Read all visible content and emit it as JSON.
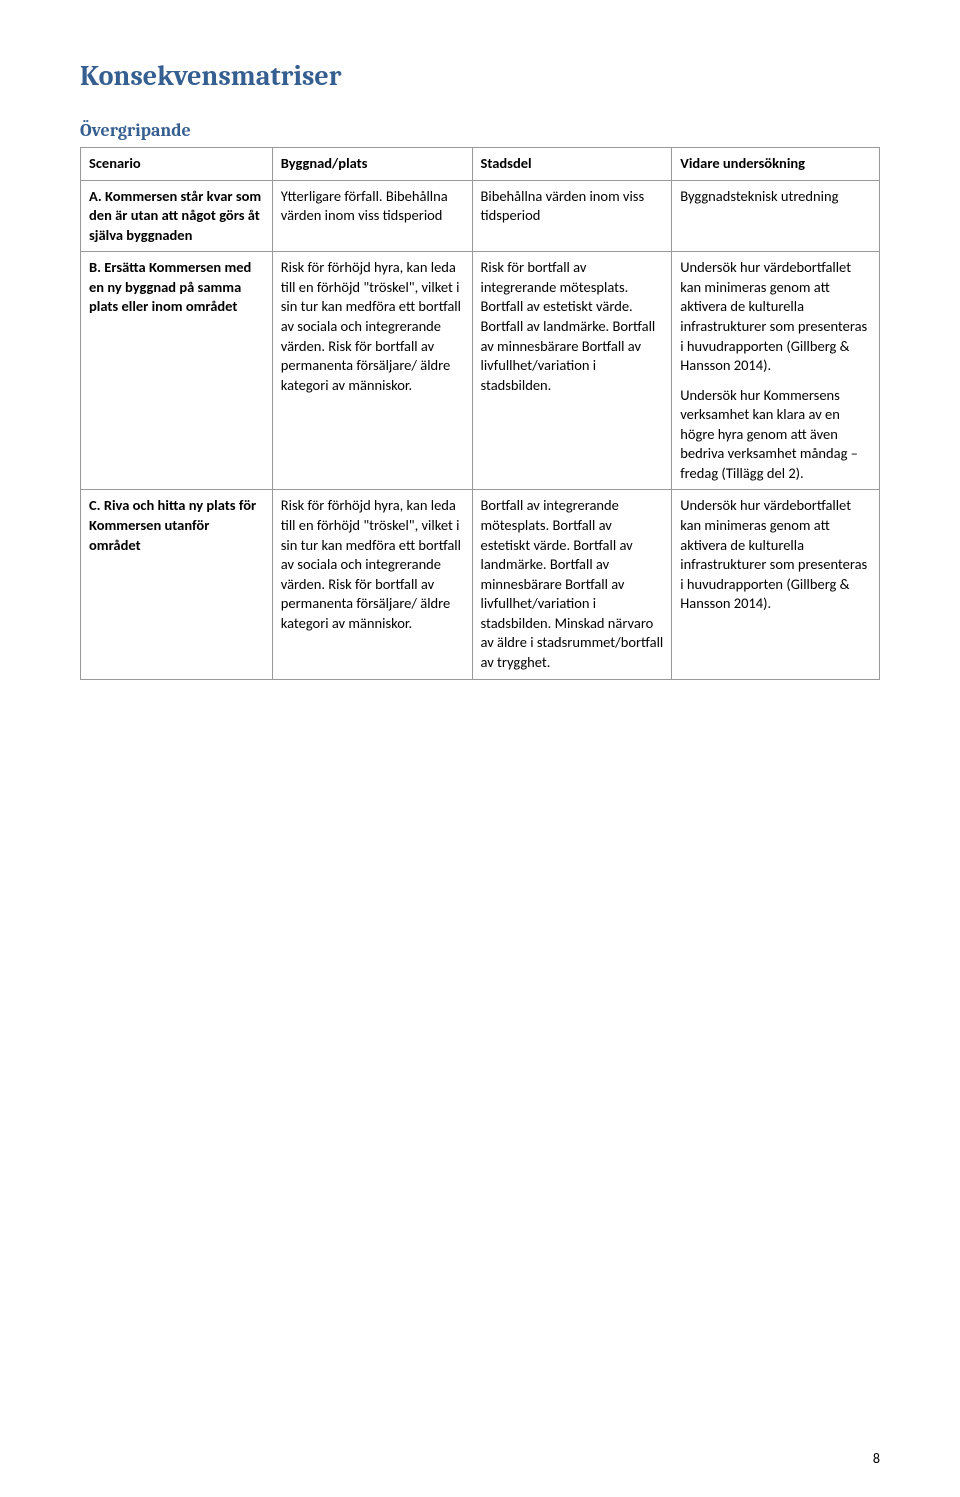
{
  "page_title": "Konsekvensmatriser",
  "section_title": "Övergripande",
  "columns": {
    "c1": "Scenario",
    "c2": "Byggnad/plats",
    "c3": "Stadsdel",
    "c4": "Vidare undersökning"
  },
  "rows": {
    "r1": {
      "scenario": "A. Kommersen står kvar som den är utan att något görs åt själva byggnaden",
      "byggnad": "Ytterligare förfall. Bibehållna värden inom viss tidsperiod",
      "stadsdel": "Bibehållna värden inom viss tidsperiod",
      "vidare": "Byggnadsteknisk utredning"
    },
    "r2": {
      "scenario": "B. Ersätta Kommersen med en ny byggnad på samma plats eller inom området",
      "byggnad": "Risk för förhöjd hyra, kan leda till en förhöjd \"tröskel\", vilket i sin tur kan medföra ett bortfall av sociala och integrerande värden. Risk för bortfall av permanenta försäljare/ äldre kategori av människor.",
      "stadsdel": "Risk för bortfall av integrerande mötesplats. Bortfall av estetiskt värde. Bortfall av landmärke. Bortfall av minnesbärare Bortfall av livfullhet/variation i stadsbilden.",
      "vidare_p1": "Undersök hur värdebortfallet kan minimeras genom att aktivera de kulturella infrastrukturer som presenteras i huvudrapporten (Gillberg & Hansson 2014).",
      "vidare_p2": "Undersök hur Kommersens verksamhet kan klara av en högre hyra genom att även bedriva verksamhet måndag – fredag (Tillägg del 2)."
    },
    "r3": {
      "scenario": "C. Riva och hitta ny plats för Kommersen utanför området",
      "byggnad": "Risk för förhöjd hyra, kan leda till en förhöjd \"tröskel\", vilket i sin tur kan medföra ett bortfall av sociala och integrerande värden. Risk för bortfall av permanenta försäljare/ äldre kategori av människor.",
      "stadsdel": "Bortfall av integrerande mötesplats. Bortfall av estetiskt värde. Bortfall av landmärke. Bortfall av minnesbärare Bortfall av livfullhet/variation i stadsbilden. Minskad närvaro av äldre i stadsrummet/bortfall av trygghet.",
      "vidare": "Undersök hur värdebortfallet kan minimeras genom att aktivera de kulturella infrastrukturer som presenteras i huvudrapporten (Gillberg & Hansson 2014)."
    }
  },
  "page_number": "8"
}
